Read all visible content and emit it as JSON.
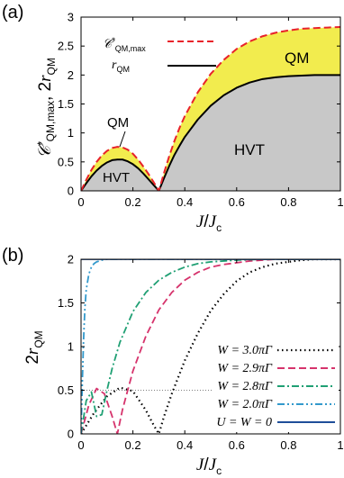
{
  "chart_data": [
    {
      "type": "area",
      "panel_label": "(a)",
      "xlabel": "J/J_c",
      "ylabel": "C*_QM,max , 2r_QM",
      "xlim": [
        0,
        1
      ],
      "ylim": [
        0,
        3
      ],
      "xticks": [
        "0",
        "0.2",
        "0.4",
        "0.6",
        "0.8",
        "1"
      ],
      "yticks": [
        "0",
        "0.5",
        "1",
        "1.5",
        "2",
        "2.5",
        "3"
      ],
      "legend_position": "top-left",
      "series": [
        {
          "name": "C*_QM,max",
          "color": "#e8222a",
          "style": "dashed",
          "x": [
            0,
            0.02,
            0.04,
            0.06,
            0.08,
            0.1,
            0.12,
            0.14,
            0.16,
            0.18,
            0.2,
            0.22,
            0.24,
            0.26,
            0.28,
            0.3,
            0.32,
            0.34,
            0.36,
            0.38,
            0.4,
            0.45,
            0.5,
            0.55,
            0.6,
            0.65,
            0.7,
            0.75,
            0.8,
            0.85,
            0.9,
            0.95,
            1.0
          ],
          "values": [
            0,
            0.19,
            0.36,
            0.5,
            0.61,
            0.69,
            0.74,
            0.76,
            0.75,
            0.71,
            0.64,
            0.54,
            0.42,
            0.29,
            0.15,
            0.0,
            0.31,
            0.6,
            0.86,
            1.09,
            1.29,
            1.7,
            2.02,
            2.26,
            2.45,
            2.58,
            2.67,
            2.73,
            2.77,
            2.8,
            2.81,
            2.82,
            2.83
          ]
        },
        {
          "name": "r_QM",
          "color": "#000000",
          "style": "solid",
          "x": [
            0,
            0.02,
            0.04,
            0.06,
            0.08,
            0.1,
            0.12,
            0.14,
            0.16,
            0.18,
            0.2,
            0.22,
            0.24,
            0.26,
            0.28,
            0.3,
            0.32,
            0.34,
            0.36,
            0.38,
            0.4,
            0.45,
            0.5,
            0.55,
            0.6,
            0.65,
            0.7,
            0.75,
            0.8,
            0.85,
            0.9,
            0.95,
            1.0
          ],
          "values": [
            0,
            0.13,
            0.25,
            0.35,
            0.43,
            0.49,
            0.53,
            0.54,
            0.54,
            0.51,
            0.46,
            0.39,
            0.3,
            0.2,
            0.1,
            0.0,
            0.22,
            0.43,
            0.62,
            0.78,
            0.93,
            1.23,
            1.47,
            1.65,
            1.78,
            1.87,
            1.93,
            1.96,
            1.98,
            1.99,
            2.0,
            2.0,
            2.0
          ]
        }
      ],
      "region_labels": [
        "QM",
        "HVT",
        "QM",
        "HVT"
      ],
      "fill_colors": {
        "upper": "#f2ec4e",
        "lower": "#c8c8c8"
      }
    },
    {
      "type": "line",
      "panel_label": "(b)",
      "xlabel": "J/J_c",
      "ylabel": "2r_QM",
      "xlim": [
        0,
        1
      ],
      "ylim": [
        0,
        2
      ],
      "xticks": [
        "0",
        "0.2",
        "0.4",
        "0.6",
        "0.8",
        "1"
      ],
      "yticks": [
        "0",
        "0.5",
        "1",
        "1.5",
        "2"
      ],
      "legend_position": "bottom-right",
      "reference_line": 0.5,
      "series": [
        {
          "name": "W = 3.0πΓ",
          "color": "#000000",
          "style": "dotted",
          "x": [
            0,
            0.05,
            0.1,
            0.15,
            0.2,
            0.25,
            0.28,
            0.3,
            0.32,
            0.35,
            0.4,
            0.45,
            0.5,
            0.55,
            0.6,
            0.65,
            0.7,
            0.75,
            0.8,
            0.85,
            0.9,
            0.95,
            1.0
          ],
          "values": [
            0,
            0.24,
            0.43,
            0.53,
            0.49,
            0.27,
            0.1,
            0.0,
            0.2,
            0.46,
            0.84,
            1.15,
            1.41,
            1.6,
            1.75,
            1.85,
            1.91,
            1.95,
            1.97,
            1.99,
            2.0,
            2.0,
            2.0
          ]
        },
        {
          "name": "W = 2.9πΓ",
          "color": "#d6336c",
          "style": "dashed",
          "x": [
            0,
            0.03,
            0.06,
            0.09,
            0.12,
            0.14,
            0.16,
            0.2,
            0.25,
            0.3,
            0.35,
            0.4,
            0.45,
            0.5,
            0.55,
            0.6,
            0.65,
            0.7,
            0.75,
            0.8,
            0.85,
            0.9,
            1.0
          ],
          "values": [
            0,
            0.33,
            0.52,
            0.46,
            0.2,
            0.0,
            0.28,
            0.72,
            1.12,
            1.42,
            1.62,
            1.76,
            1.85,
            1.91,
            1.94,
            1.96,
            1.98,
            1.99,
            2.0,
            2.0,
            2.0,
            2.0,
            2.0
          ]
        },
        {
          "name": "W = 2.8πΓ",
          "color": "#20a074",
          "style": "dashdot",
          "x": [
            0,
            0.02,
            0.04,
            0.06,
            0.08,
            0.1,
            0.12,
            0.15,
            0.2,
            0.25,
            0.3,
            0.35,
            0.4,
            0.45,
            0.5,
            0.55,
            0.6,
            0.7,
            0.8,
            1.0
          ],
          "values": [
            0,
            0.38,
            0.48,
            0.2,
            0.22,
            0.5,
            0.75,
            1.05,
            1.4,
            1.62,
            1.76,
            1.85,
            1.91,
            1.95,
            1.97,
            1.98,
            1.99,
            2.0,
            2.0,
            2.0
          ]
        },
        {
          "name": "W = 2.0πΓ",
          "color": "#3399cc",
          "style": "dashdotdot",
          "x": [
            0,
            0.005,
            0.01,
            0.015,
            0.02,
            0.03,
            0.04,
            0.05,
            0.06,
            0.08,
            0.1,
            0.15,
            0.2,
            1.0
          ],
          "values": [
            0,
            0.6,
            1.1,
            1.45,
            1.65,
            1.83,
            1.91,
            1.95,
            1.97,
            1.99,
            2.0,
            2.0,
            2.0,
            2.0
          ]
        },
        {
          "name": "U = W = 0",
          "color": "#1f4e99",
          "style": "solid",
          "x": [
            0,
            1
          ],
          "values": [
            2,
            2
          ]
        }
      ]
    }
  ]
}
